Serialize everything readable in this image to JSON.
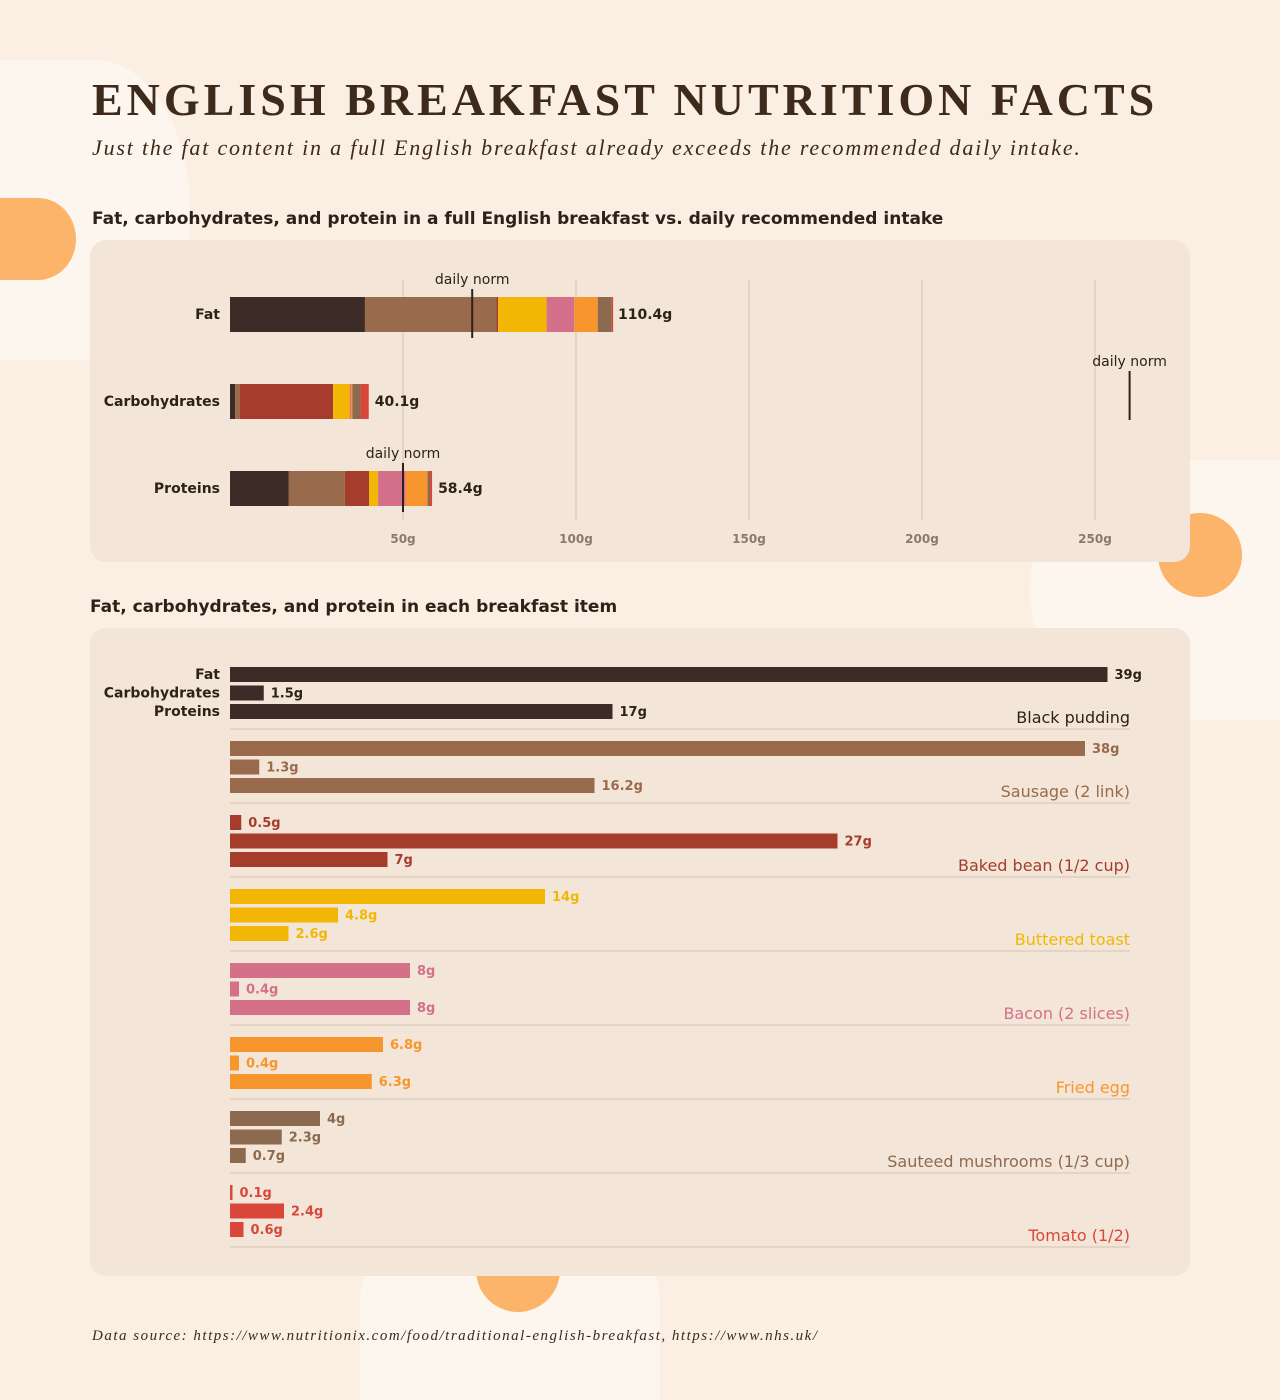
{
  "title": "ENGLISH BREAKFAST NUTRITION FACTS",
  "subtitle": "Just the fat content in a full English breakfast already exceeds the recommended daily intake.",
  "source": "Data source: https://www.nutritionix.com/food/traditional-english-breakfast, https://www.nhs.uk/",
  "chart_data": [
    {
      "type": "bar",
      "orientation": "horizontal",
      "stacked": true,
      "title": "Fat, carbohydrates, and protein in a full English breakfast vs. daily recommended intake",
      "categories": [
        "Fat",
        "Carbohydrates",
        "Proteins"
      ],
      "totals": [
        "110.4g",
        "40.1g",
        "58.4g"
      ],
      "daily_norm": [
        70,
        260,
        50
      ],
      "norm_label": "daily norm",
      "xlim": [
        0,
        260
      ],
      "ticks": [
        50,
        100,
        150,
        200,
        250
      ],
      "tick_labels": [
        "50g",
        "100g",
        "150g",
        "200g",
        "250g"
      ],
      "grid": true,
      "series": [
        {
          "item": "Black pudding",
          "color": "#3d2b27",
          "values": [
            39,
            1.5,
            17
          ]
        },
        {
          "item": "Sausage (2 link)",
          "color": "#9a6a4c",
          "values": [
            38,
            1.3,
            16.2
          ]
        },
        {
          "item": "Baked bean (1/2 cup)",
          "color": "#a63d2c",
          "values": [
            0.5,
            27,
            7
          ]
        },
        {
          "item": "Buttered toast",
          "color": "#f2b705",
          "values": [
            14,
            4.8,
            2.6
          ]
        },
        {
          "item": "Bacon (2 slices)",
          "color": "#d4708a",
          "values": [
            8,
            0.4,
            8
          ]
        },
        {
          "item": "Fried egg",
          "color": "#f7962d",
          "values": [
            6.8,
            0.4,
            6.3
          ]
        },
        {
          "item": "Sauteed mushrooms (1/3 cup)",
          "color": "#8c6a4f",
          "values": [
            4,
            2.3,
            0.7
          ]
        },
        {
          "item": "Tomato (1/2)",
          "color": "#d9473a",
          "values": [
            0.1,
            2.4,
            0.6
          ]
        }
      ]
    },
    {
      "type": "bar",
      "orientation": "horizontal",
      "grouped": true,
      "title": "Fat, carbohydrates, and protein in each breakfast item",
      "legend": [
        "Fat",
        "Carbohydrates",
        "Proteins"
      ],
      "items": [
        {
          "name": "Black pudding",
          "color": "#3d2b27",
          "values": [
            39,
            1.5,
            17
          ],
          "labels": [
            "39g",
            "1.5g",
            "17g"
          ]
        },
        {
          "name": "Sausage (2 link)",
          "color": "#9a6a4c",
          "values": [
            38,
            1.3,
            16.2
          ],
          "labels": [
            "38g",
            "1.3g",
            "16.2g"
          ]
        },
        {
          "name": "Baked bean (1/2 cup)",
          "color": "#a63d2c",
          "values": [
            0.5,
            27,
            7
          ],
          "labels": [
            "0.5g",
            "27g",
            "7g"
          ]
        },
        {
          "name": "Buttered toast",
          "color": "#f2b705",
          "values": [
            14,
            4.8,
            2.6
          ],
          "labels": [
            "14g",
            "4.8g",
            "2.6g"
          ]
        },
        {
          "name": "Bacon (2 slices)",
          "color": "#d4708a",
          "values": [
            8,
            0.4,
            8
          ],
          "labels": [
            "8g",
            "0.4g",
            "8g"
          ]
        },
        {
          "name": "Fried egg",
          "color": "#f7962d",
          "values": [
            6.8,
            0.4,
            6.3
          ],
          "labels": [
            "6.8g",
            "0.4g",
            "6.3g"
          ]
        },
        {
          "name": "Sauteed mushrooms (1/3 cup)",
          "color": "#8c6a4f",
          "values": [
            4,
            2.3,
            0.7
          ],
          "labels": [
            "4g",
            "2.3g",
            "0.7g"
          ]
        },
        {
          "name": "Tomato (1/2)",
          "color": "#d9473a",
          "values": [
            0.1,
            2.4,
            0.6
          ],
          "labels": [
            "0.1g",
            "2.4g",
            "0.6g"
          ]
        }
      ]
    }
  ]
}
